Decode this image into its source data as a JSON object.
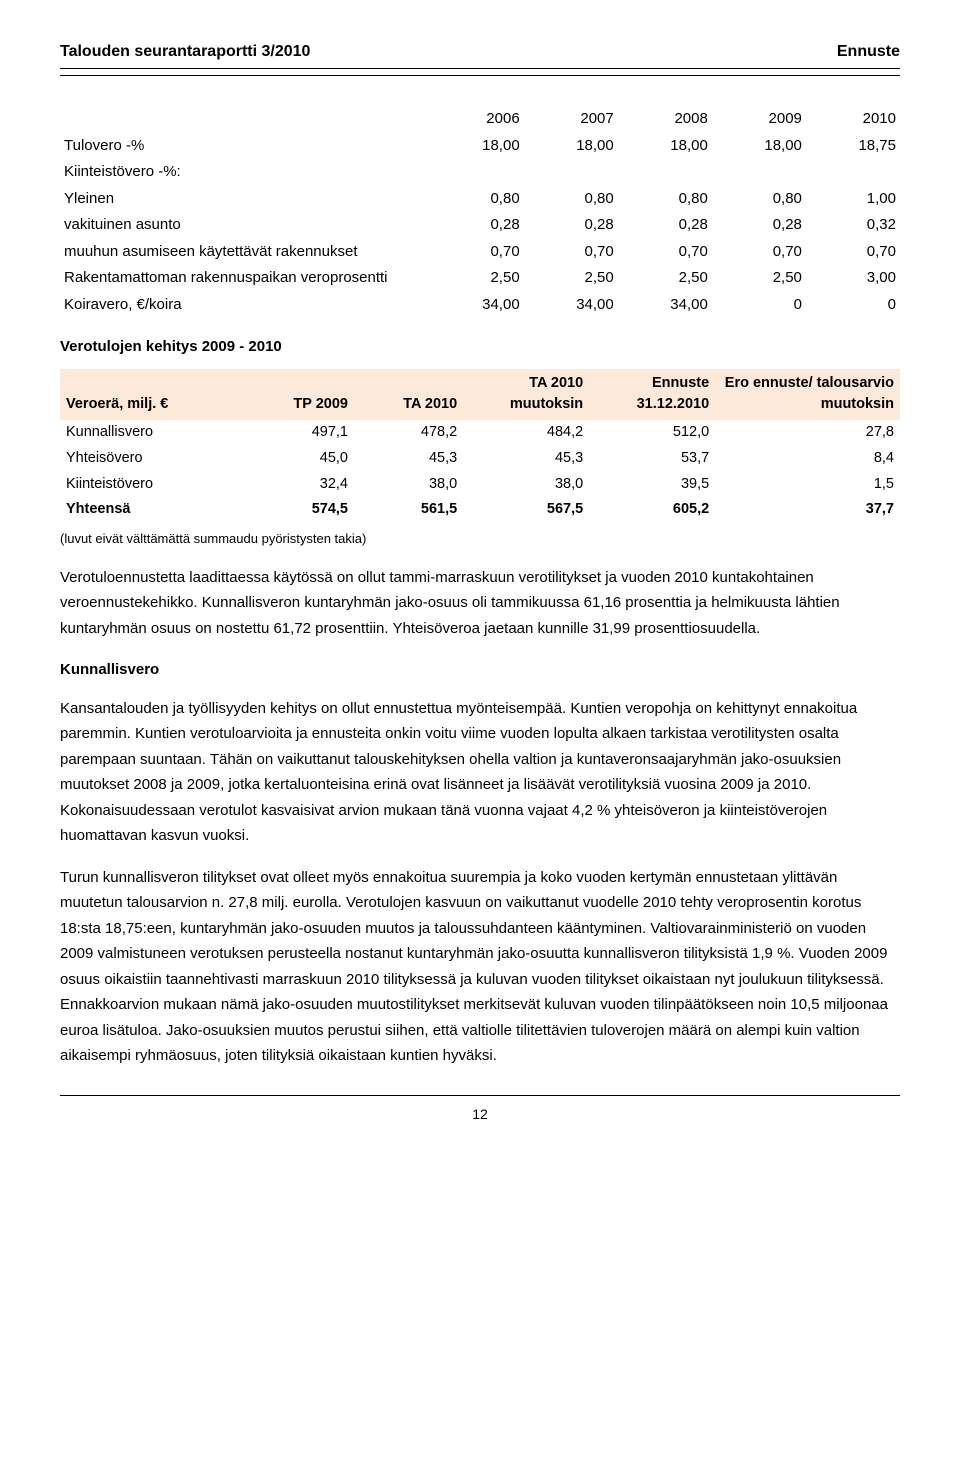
{
  "header": {
    "left": "Talouden seurantaraportti 3/2010",
    "right": "Ennuste"
  },
  "tax_table": {
    "years": [
      "2006",
      "2007",
      "2008",
      "2009",
      "2010"
    ],
    "rows": [
      {
        "label": "Tulovero -%",
        "indent": false,
        "vals": [
          "18,00",
          "18,00",
          "18,00",
          "18,00",
          "18,75"
        ]
      },
      {
        "label": "Kiinteistövero -%:",
        "indent": false,
        "vals": [
          "",
          "",
          "",
          "",
          ""
        ]
      },
      {
        "label": "Yleinen",
        "indent": true,
        "vals": [
          "0,80",
          "0,80",
          "0,80",
          "0,80",
          "1,00"
        ]
      },
      {
        "label": "vakituinen asunto",
        "indent": true,
        "vals": [
          "0,28",
          "0,28",
          "0,28",
          "0,28",
          "0,32"
        ]
      },
      {
        "label": "muuhun asumiseen käytettävät rakennukset",
        "indent": true,
        "vals": [
          "0,70",
          "0,70",
          "0,70",
          "0,70",
          "0,70"
        ]
      },
      {
        "label": "Rakentamattoman rakennuspaikan veroprosentti",
        "indent": true,
        "vals": [
          "2,50",
          "2,50",
          "2,50",
          "2,50",
          "3,00"
        ]
      },
      {
        "label": "Koiravero, €/koira",
        "indent": false,
        "vals": [
          "34,00",
          "34,00",
          "34,00",
          "0",
          "0"
        ]
      }
    ]
  },
  "section_title": "Verotulojen kehitys 2009 - 2010",
  "vero_table": {
    "headers": [
      "Veroerä, milj. €",
      "TP 2009",
      "TA 2010",
      "TA 2010 muutoksin",
      "Ennuste 31.12.2010",
      "Ero ennuste/ talousarvio muutoksin"
    ],
    "header_bg": "#fde9d9",
    "rows": [
      {
        "label": "Kunnallisvero",
        "vals": [
          "497,1",
          "478,2",
          "484,2",
          "512,0",
          "27,8"
        ],
        "bold": false
      },
      {
        "label": "Yhteisövero",
        "vals": [
          "45,0",
          "45,3",
          "45,3",
          "53,7",
          "8,4"
        ],
        "bold": false
      },
      {
        "label": "Kiinteistövero",
        "vals": [
          "32,4",
          "38,0",
          "38,0",
          "39,5",
          "1,5"
        ],
        "bold": false
      },
      {
        "label": "Yhteensä",
        "vals": [
          "574,5",
          "561,5",
          "567,5",
          "605,2",
          "37,7"
        ],
        "bold": true
      }
    ],
    "note": "(luvut eivät välttämättä summaudu pyöristysten takia)"
  },
  "paragraphs": {
    "p1": "Verotuloennustetta laadittaessa käytössä on ollut tammi-marraskuun verotilitykset ja vuoden 2010 kuntakohtainen veroennustekehikko. Kunnallisveron kuntaryhmän jako-osuus oli tammikuussa 61,16 prosenttia ja helmikuusta lähtien kuntaryhmän osuus on nostettu 61,72 prosenttiin. Yhteisöveroa jaetaan kunnille 31,99 prosenttiosuudella.",
    "subhead": "Kunnallisvero",
    "p2": "Kansantalouden ja työllisyyden kehitys on ollut ennustettua myönteisempää. Kuntien veropohja on kehittynyt ennakoitua paremmin. Kuntien verotuloarvioita ja ennusteita onkin voitu viime vuoden lopulta alkaen tarkistaa verotilitysten osalta parempaan suuntaan. Tähän on vaikuttanut talouskehityksen ohella valtion ja kuntaveronsaajaryhmän jako-osuuksien muutokset 2008 ja 2009, jotka kertaluonteisina erinä ovat lisänneet ja lisäävät verotilityksiä vuosina 2009 ja 2010. Kokonaisuudessaan verotulot kasvaisivat arvion mukaan tänä vuonna vajaat 4,2 % yhteisöveron ja kiinteistöverojen huomattavan kasvun vuoksi.",
    "p3": "Turun kunnallisveron tilitykset ovat olleet myös ennakoitua suurempia ja koko vuoden kertymän ennustetaan ylittävän muutetun talousarvion n. 27,8 milj. eurolla. Verotulojen kasvuun on vaikuttanut vuodelle 2010 tehty veroprosentin korotus 18:sta 18,75:een, kuntaryhmän jako-osuuden muutos ja taloussuhdanteen kääntyminen. Valtiovarainministeriö on vuoden 2009 valmistuneen verotuksen perusteella nostanut kuntaryhmän jako-osuutta kunnallisveron tilityksistä 1,9 %. Vuoden 2009 osuus oikaistiin taannehtivasti marraskuun 2010 tilityksessä ja kuluvan vuoden tilitykset oikaistaan nyt joulukuun tilityksessä. Ennakkoarvion mukaan nämä jako-osuuden muutostilitykset merkitsevät kuluvan vuoden tilinpäätökseen noin 10,5 miljoonaa euroa lisätuloa. Jako-osuuksien muutos perustui siihen, että valtiolle tilitettävien tuloverojen määrä on alempi kuin valtion aikaisempi ryhmäosuus, joten tilityksiä oikaistaan kuntien hyväksi."
  },
  "page_number": "12"
}
